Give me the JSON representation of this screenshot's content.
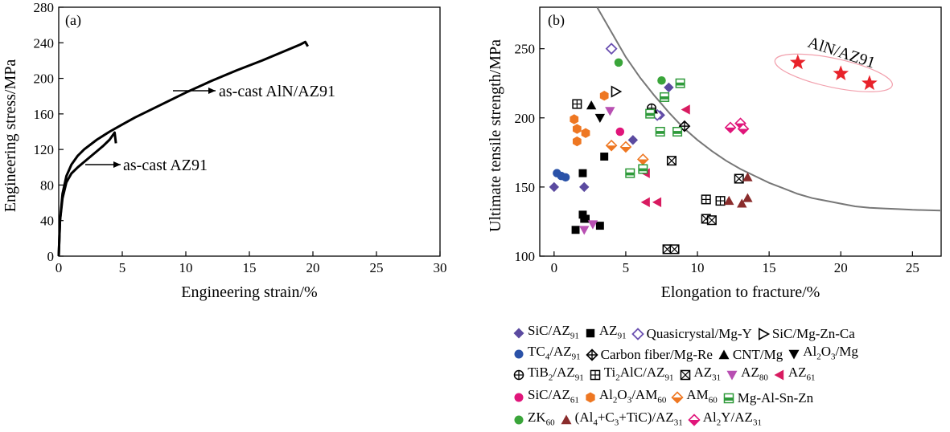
{
  "chart_data": [
    {
      "type": "line",
      "panel_label": "(a)",
      "xlabel": "Engineering strain/%",
      "ylabel": "Engineering stress/MPa",
      "xlim": [
        0,
        30
      ],
      "ylim": [
        0,
        280
      ],
      "xticks": [
        0,
        5,
        10,
        15,
        20,
        25,
        30
      ],
      "yticks": [
        0,
        40,
        80,
        120,
        160,
        200,
        240,
        280
      ],
      "series": [
        {
          "name": "as-cast AlN/AZ91",
          "x": [
            0,
            0.1,
            0.3,
            0.6,
            1,
            1.5,
            2,
            3,
            4,
            5,
            6,
            8,
            10,
            12,
            14,
            16,
            18,
            19,
            19.4,
            19.6
          ],
          "y": [
            0,
            40,
            70,
            90,
            103,
            113,
            120,
            131,
            140,
            148,
            156,
            170,
            184,
            197,
            209,
            220,
            232,
            238,
            241,
            236
          ]
        },
        {
          "name": "as-cast AZ91",
          "x": [
            0,
            0.1,
            0.3,
            0.6,
            1,
            1.5,
            2,
            3,
            3.5,
            4,
            4.4,
            4.5
          ],
          "y": [
            0,
            40,
            65,
            83,
            93,
            100,
            106,
            118,
            124,
            131,
            139,
            127
          ]
        }
      ],
      "annotations": [
        "as-cast AlN/AZ91",
        "as-cast AZ91"
      ],
      "grid": false
    },
    {
      "type": "scatter",
      "panel_label": "(b)",
      "xlabel": "Elongation to fracture/%",
      "ylabel": "Ultimate tensile strength/MPa",
      "xlim": [
        -1,
        27
      ],
      "ylim": [
        100,
        280
      ],
      "xticks": [
        0,
        5,
        10,
        15,
        20,
        25
      ],
      "yticks": [
        100,
        150,
        200,
        250
      ],
      "annotation": "AlN/AZ91",
      "series": [
        {
          "name": "SiC/AZ91",
          "marker": "diamond-filled",
          "color": "#5b4aa0",
          "points": [
            [
              0,
              150
            ],
            [
              2.1,
              150
            ],
            [
              5.5,
              184
            ],
            [
              7.4,
              202
            ],
            [
              8,
              222
            ]
          ]
        },
        {
          "name": "AZ91",
          "marker": "square-filled",
          "color": "#000000",
          "points": [
            [
              1.5,
              119
            ],
            [
              2,
              160
            ],
            [
              2,
              130
            ],
            [
              2.1,
              127
            ],
            [
              2.2,
              127
            ],
            [
              3.2,
              122
            ],
            [
              3.5,
              172
            ]
          ]
        },
        {
          "name": "Quasicrystal/Mg-Y",
          "marker": "diamond-open",
          "color": "#6a4fb0",
          "points": [
            [
              4,
              250
            ],
            [
              7.2,
              202
            ]
          ]
        },
        {
          "name": "SiC/Mg-Zn-Ca",
          "marker": "triangle-right-open",
          "color": "#000000",
          "points": [
            [
              4.3,
              219
            ]
          ]
        },
        {
          "name": "TC4/AZ91",
          "marker": "circle-filled",
          "color": "#2a52a8",
          "points": [
            [
              0.2,
              160
            ],
            [
              0.5,
              158
            ],
            [
              0.8,
              157
            ]
          ]
        },
        {
          "name": "Carbon fiber/Mg-Re",
          "marker": "diamond-cross-open",
          "color": "#000000",
          "points": [
            [
              9.1,
              194
            ]
          ]
        },
        {
          "name": "CNT/Mg",
          "marker": "triangle-up-filled",
          "color": "#000000",
          "points": [
            [
              2.6,
              209
            ],
            [
              6.9,
              206
            ]
          ]
        },
        {
          "name": "Al2O3/Mg",
          "marker": "triangle-down-filled",
          "color": "#000000",
          "points": [
            [
              3.2,
              200
            ]
          ]
        },
        {
          "name": "TiB2/AZ91",
          "marker": "circle-plus-open",
          "color": "#000000",
          "points": [
            [
              6.8,
              207
            ]
          ]
        },
        {
          "name": "Ti2AlC/AZ91",
          "marker": "square-grid-open",
          "color": "#000000",
          "points": [
            [
              1.6,
              210
            ],
            [
              10.6,
              141
            ],
            [
              11.6,
              140
            ]
          ]
        },
        {
          "name": "AZ31",
          "marker": "square-x-open",
          "color": "#000000",
          "points": [
            [
              8.2,
              169
            ],
            [
              10.6,
              127
            ],
            [
              11,
              126
            ],
            [
              7.9,
              105
            ],
            [
              8.4,
              105
            ],
            [
              12.9,
              156
            ]
          ]
        },
        {
          "name": "AZ80",
          "marker": "triangle-down-filled",
          "color": "#b84fb2",
          "points": [
            [
              3.9,
              205
            ],
            [
              2.1,
              119
            ],
            [
              2.7,
              123
            ]
          ]
        },
        {
          "name": "AZ61",
          "marker": "triangle-left-filled",
          "color": "#d81b60",
          "points": [
            [
              9.2,
              206
            ],
            [
              6.4,
              160
            ],
            [
              7.2,
              139
            ],
            [
              6.4,
              139
            ]
          ]
        },
        {
          "name": "SiC/AZ61",
          "marker": "circle-filled",
          "color": "#e0157a",
          "points": [
            [
              4.6,
              190
            ]
          ]
        },
        {
          "name": "Al2O3/AM60",
          "marker": "hexagon-filled",
          "color": "#ee7722",
          "points": [
            [
              1.4,
              199
            ],
            [
              1.6,
              192
            ],
            [
              1.6,
              183
            ],
            [
              2.2,
              189
            ],
            [
              3.5,
              216
            ]
          ]
        },
        {
          "name": "AM60",
          "marker": "diamond-half",
          "color": "#ee7722",
          "points": [
            [
              4,
              180
            ],
            [
              5,
              179
            ],
            [
              6.2,
              170
            ]
          ]
        },
        {
          "name": "Mg-Al-Sn-Zn",
          "marker": "square-half",
          "color": "#2e9a3a",
          "points": [
            [
              5.3,
              160
            ],
            [
              6.2,
              163
            ],
            [
              6.7,
              203
            ],
            [
              7.4,
              190
            ],
            [
              7.7,
              215
            ],
            [
              8.8,
              225
            ],
            [
              8.6,
              190
            ]
          ]
        },
        {
          "name": "ZK60",
          "marker": "circle-filled",
          "color": "#3aa53a",
          "points": [
            [
              4.5,
              240
            ],
            [
              7.5,
              227
            ]
          ]
        },
        {
          "name": "(Al4+C3+TiC)/AZ31",
          "marker": "triangle-up-filled",
          "color": "#8a2c2c",
          "points": [
            [
              13.5,
              157
            ],
            [
              12.2,
              140
            ],
            [
              13.1,
              138
            ],
            [
              13.5,
              142
            ]
          ]
        },
        {
          "name": "Al2Y/AZ31",
          "marker": "diamond-half",
          "color": "#e0157a",
          "points": [
            [
              12.3,
              193
            ],
            [
              13,
              196
            ],
            [
              13.2,
              192
            ]
          ]
        },
        {
          "name": "AlN/AZ91",
          "marker": "star-filled",
          "color": "#e8222a",
          "points": [
            [
              17,
              240
            ],
            [
              20,
              232
            ],
            [
              22,
              225
            ]
          ]
        }
      ],
      "trend_curve": {
        "x": [
          3,
          4,
          5,
          6,
          7,
          8,
          9,
          10,
          11,
          12,
          13,
          14,
          15,
          16,
          17,
          18,
          19,
          20,
          21,
          22,
          23,
          24,
          25,
          26,
          27
        ],
        "y": [
          280,
          262,
          244,
          229,
          216,
          204,
          193,
          184,
          176,
          169,
          163,
          158,
          153,
          149,
          145,
          142,
          140,
          138,
          136,
          135,
          134.5,
          134,
          133.5,
          133.2,
          133
        ]
      },
      "legend": {
        "placement": "bottom",
        "rows": [
          [
            {
              "label": "SiC/AZ91",
              "sub": false
            },
            {
              "label": "AZ91"
            },
            {
              "label": "Quasicrystal/Mg-Y"
            },
            {
              "label": "SiC/Mg-Zn-Ca"
            }
          ],
          [
            {
              "label": "TC4/AZ91"
            },
            {
              "label": "Carbon fiber/Mg-Re"
            },
            {
              "label": "CNT/Mg"
            },
            {
              "label": "Al2O3/Mg"
            }
          ],
          [
            {
              "label": "TiB2/AZ91"
            },
            {
              "label": "Ti2AlC/AZ91"
            },
            {
              "label": "AZ31"
            },
            {
              "label": "AZ80"
            },
            {
              "label": "AZ61"
            }
          ],
          [
            {
              "label": "SiC/AZ61"
            },
            {
              "label": "Al2O3/AM60"
            },
            {
              "label": "AM60"
            },
            {
              "label": "Mg-Al-Sn-Zn"
            }
          ],
          [
            {
              "label": "ZK60"
            },
            {
              "label": "(Al4+C3+TiC)/AZ31"
            },
            {
              "label": "Al2Y/AZ31"
            }
          ]
        ]
      }
    }
  ]
}
